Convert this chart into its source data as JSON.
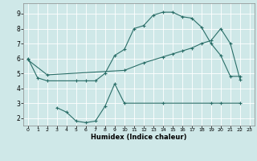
{
  "background_color": "#cfe8e8",
  "grid_color": "#ffffff",
  "line_color": "#2a6e68",
  "xlabel": "Humidex (Indice chaleur)",
  "xlim": [
    -0.5,
    23.5
  ],
  "ylim": [
    1.5,
    9.7
  ],
  "xticks": [
    0,
    1,
    2,
    3,
    4,
    5,
    6,
    7,
    8,
    9,
    10,
    11,
    12,
    13,
    14,
    15,
    16,
    17,
    18,
    19,
    20,
    21,
    22,
    23
  ],
  "yticks": [
    2,
    3,
    4,
    5,
    6,
    7,
    8,
    9
  ],
  "curve1_x": [
    0,
    1,
    2,
    5,
    6,
    7,
    8,
    9,
    10,
    11,
    12,
    13,
    14,
    15,
    16,
    17,
    18,
    19,
    20,
    21,
    22
  ],
  "curve1_y": [
    6.0,
    4.7,
    4.5,
    4.5,
    4.5,
    4.5,
    5.0,
    6.2,
    6.6,
    8.0,
    8.2,
    8.9,
    9.1,
    9.1,
    8.8,
    8.7,
    8.1,
    7.0,
    6.2,
    4.8,
    4.8
  ],
  "curve2_x": [
    0,
    2,
    10,
    12,
    14,
    15,
    16,
    17,
    18,
    19,
    20,
    21,
    22
  ],
  "curve2_y": [
    5.9,
    4.9,
    5.2,
    5.7,
    6.1,
    6.3,
    6.5,
    6.7,
    7.0,
    7.2,
    8.0,
    7.0,
    4.6
  ],
  "curve3_x": [
    3,
    4,
    5,
    6,
    7,
    8,
    9,
    10,
    14,
    19,
    20,
    22
  ],
  "curve3_y": [
    2.7,
    2.4,
    1.8,
    1.7,
    1.8,
    2.8,
    4.3,
    3.0,
    3.0,
    3.0,
    3.0,
    3.0
  ]
}
